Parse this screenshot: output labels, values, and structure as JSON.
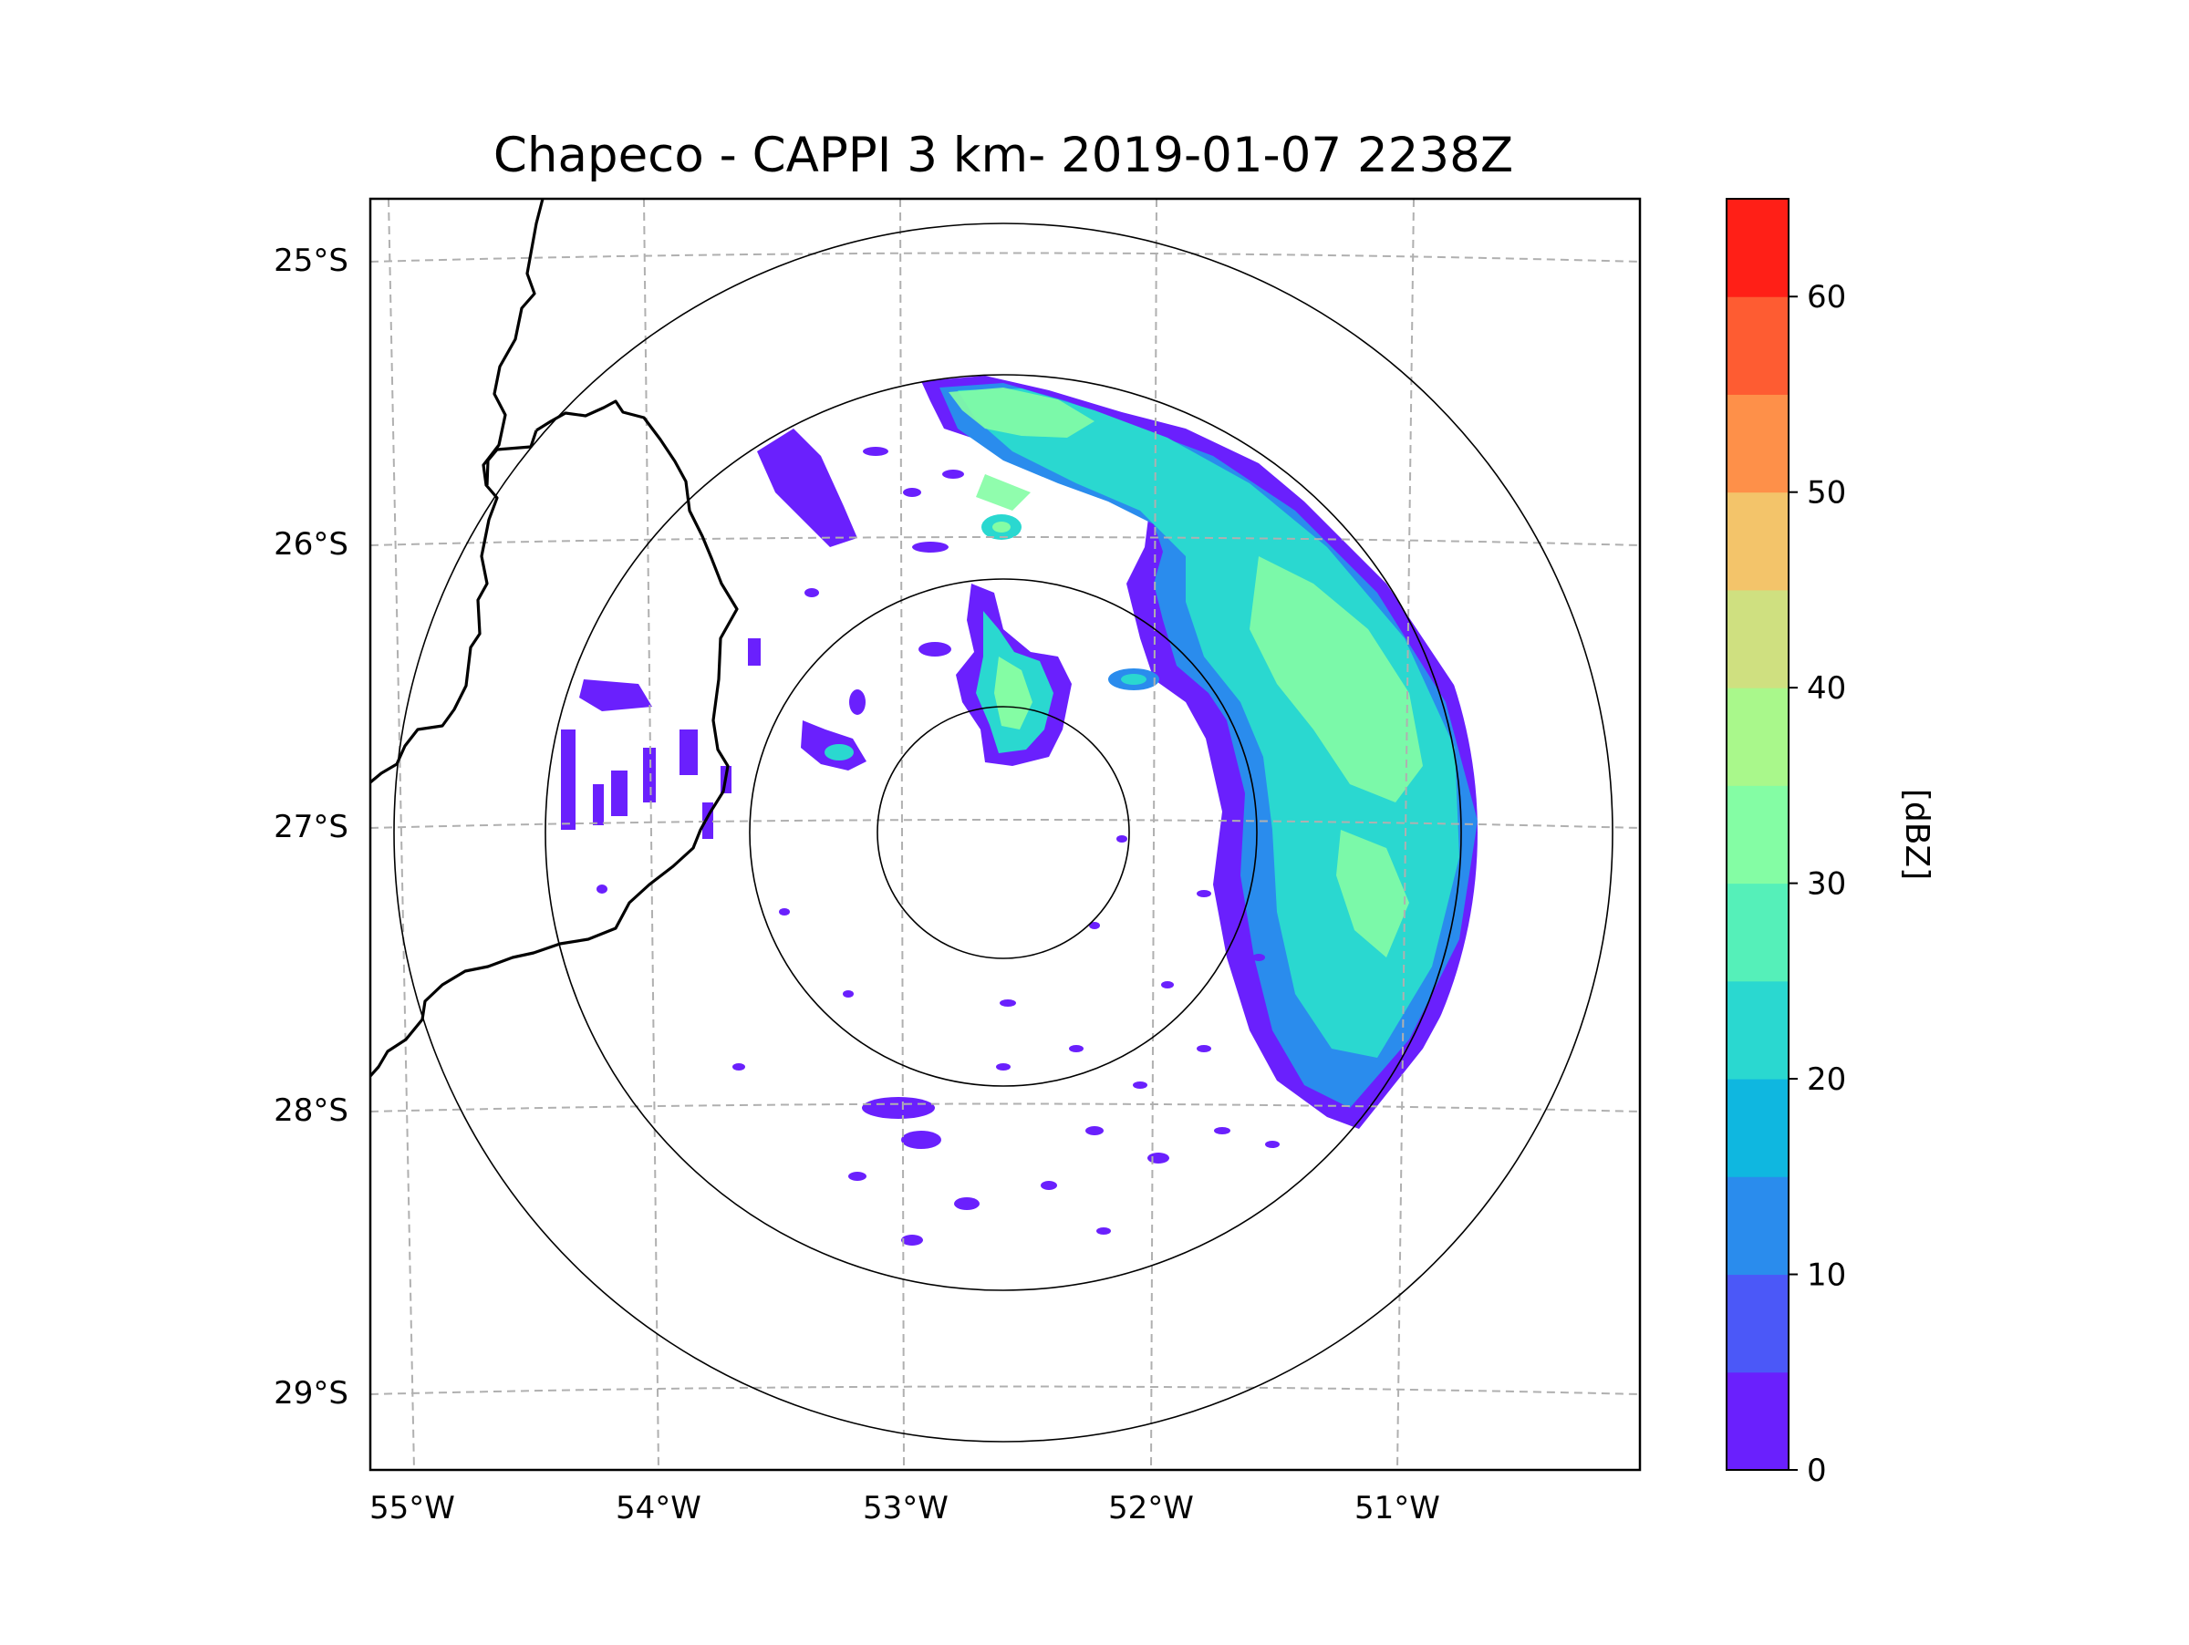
{
  "title": "Chapeco - CAPPI 3 km- 2019-01-07 2238Z",
  "map": {
    "lon_ticks": [
      "55°W",
      "54°W",
      "53°W",
      "52°W",
      "51°W"
    ],
    "lat_ticks": [
      "25°S",
      "26°S",
      "27°S",
      "28°S",
      "29°S"
    ],
    "lon_range": [
      -55.17,
      -50.03
    ],
    "lat_range": [
      -29.28,
      -24.78
    ],
    "radar_site": {
      "lon": -52.6,
      "lat": -27.03
    },
    "range_ring_count": 4,
    "land_color": "#ffffff",
    "border_color": "#000000",
    "grid_color": "#b0b0b0"
  },
  "colorbar": {
    "label": "[dBZ]",
    "ticks": [
      "0",
      "10",
      "20",
      "30",
      "40",
      "50",
      "60"
    ],
    "min": 0,
    "max": 65,
    "step": 5,
    "colors": [
      "#6a20fd",
      "#4b58f8",
      "#2a8ced",
      "#0fb7e0",
      "#2ad8d0",
      "#55f0b9",
      "#84fda4",
      "#a9f88b",
      "#cfe080",
      "#f3c46a",
      "#fe9049",
      "#fe5c32",
      "#ff1f17"
    ]
  },
  "echo_colors": {
    "weak": "#6a20fd",
    "light": "#2a8ced",
    "moderate": "#2ad8d0",
    "strong": "#84fda4"
  }
}
